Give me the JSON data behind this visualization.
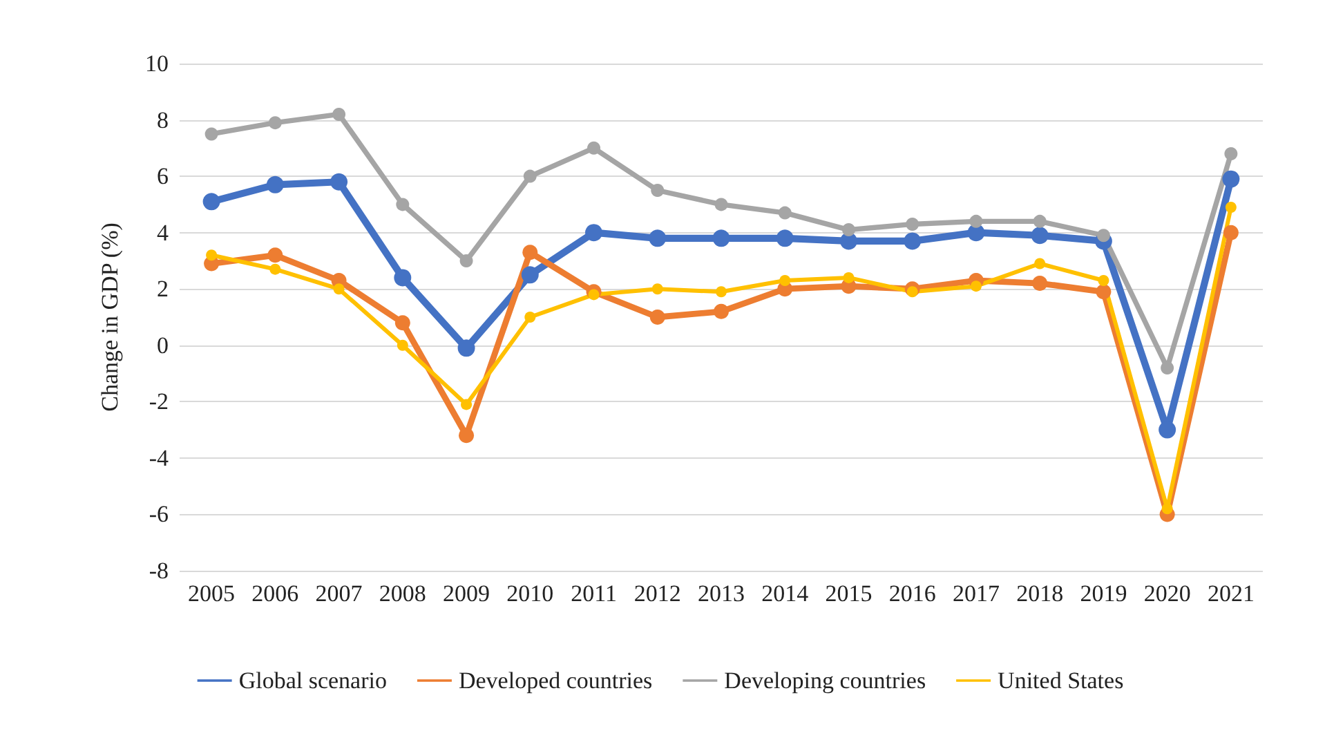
{
  "chart_data": {
    "type": "line",
    "ylabel": "Change in GDP (%)",
    "categories": [
      "2005",
      "2006",
      "2007",
      "2008",
      "2009",
      "2010",
      "2011",
      "2012",
      "2013",
      "2014",
      "2015",
      "2016",
      "2017",
      "2018",
      "2019",
      "2020",
      "2021"
    ],
    "series": [
      {
        "name": "Global scenario",
        "color": "#4472c4",
        "values": [
          5.1,
          5.7,
          5.8,
          2.4,
          -0.1,
          2.5,
          4.0,
          3.8,
          3.8,
          3.8,
          3.7,
          3.7,
          4.0,
          3.9,
          3.7,
          -3.0,
          5.9
        ]
      },
      {
        "name": "Developed countries",
        "color": "#ed7d31",
        "values": [
          2.9,
          3.2,
          2.3,
          0.8,
          -3.2,
          3.3,
          1.9,
          1.0,
          1.2,
          2.0,
          2.1,
          2.0,
          2.3,
          2.2,
          1.9,
          -6.0,
          4.0
        ]
      },
      {
        "name": "Developing countries",
        "color": "#a5a5a5",
        "values": [
          7.5,
          7.9,
          8.2,
          5.0,
          3.0,
          6.0,
          7.0,
          5.5,
          5.0,
          4.7,
          4.1,
          4.3,
          4.4,
          4.4,
          3.9,
          -0.8,
          6.8
        ]
      },
      {
        "name": "United States",
        "color": "#ffc000",
        "values": [
          3.2,
          2.7,
          2.0,
          0.0,
          -2.1,
          1.0,
          1.8,
          2.0,
          1.9,
          2.3,
          2.4,
          1.9,
          2.1,
          2.9,
          2.3,
          -5.8,
          4.9
        ]
      }
    ],
    "ylim": [
      -8,
      10
    ],
    "yticks": [
      -8,
      -6,
      -4,
      -2,
      0,
      2,
      4,
      6,
      8,
      10
    ],
    "grid": "y",
    "legend": "bottom",
    "marker": "circle",
    "line_style": "solid"
  }
}
